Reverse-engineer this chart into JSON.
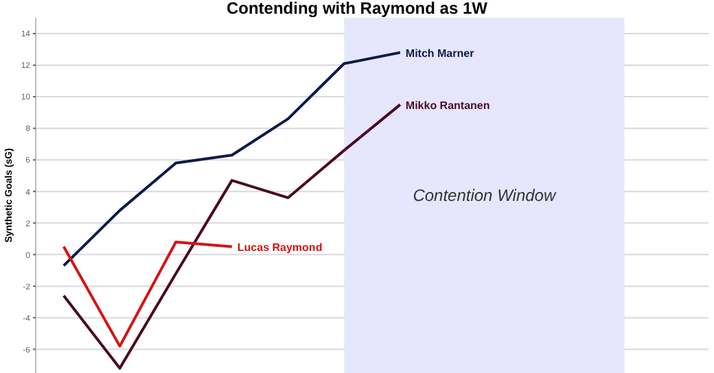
{
  "chart_data": {
    "type": "line",
    "title": "Contending with Raymond as 1W",
    "ylabel": "Synthetic Goals (sG)",
    "categories": [
      null,
      null,
      null,
      null,
      null,
      null,
      null,
      null,
      null,
      null,
      null,
      null
    ],
    "series": [
      {
        "name": "Mitch Marner",
        "color": "#0b1a4a",
        "values": [
          -0.7,
          2.8,
          5.8,
          6.3,
          8.6,
          12.1,
          12.8,
          null,
          null,
          null,
          null,
          null
        ]
      },
      {
        "name": "Mikko Rantanen",
        "color": "#4a0a24",
        "values": [
          -2.6,
          -7.2,
          -1.2,
          4.7,
          3.6,
          6.6,
          9.5,
          null,
          null,
          null,
          null,
          null
        ]
      },
      {
        "name": "Lucas Raymond",
        "color": "#d41414",
        "values": [
          0.5,
          -5.8,
          0.8,
          0.5,
          null,
          null,
          null,
          null,
          null,
          null,
          null,
          null
        ]
      }
    ],
    "ylim": [
      -7.5,
      15
    ],
    "yticks": [
      -6,
      -4,
      -2,
      0,
      2,
      4,
      6,
      8,
      10,
      12,
      14
    ],
    "annotations": [
      "Contention Window"
    ],
    "grid": true,
    "tick_labels": "y",
    "legend": false,
    "marker": "none",
    "line_style": "solid"
  }
}
